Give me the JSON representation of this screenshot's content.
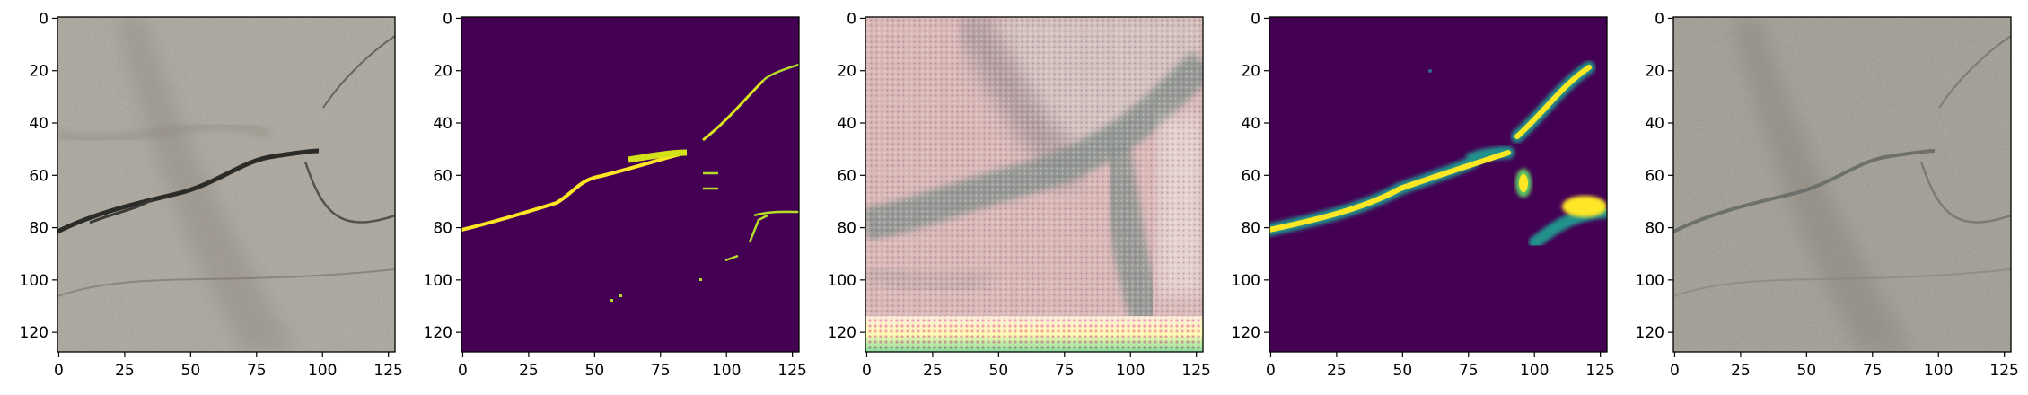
{
  "figure": {
    "panel_count": 5,
    "panels": [
      {
        "id": "input-photo",
        "content": "grayscale-concrete-photo-with-crack"
      },
      {
        "id": "ground-truth-mask",
        "content": "viridis-binary-crack-mask"
      },
      {
        "id": "generated-texture",
        "content": "checkerboard-artifact-colored-texture"
      },
      {
        "id": "predicted-mask",
        "content": "viridis-smooth-crack-prediction"
      },
      {
        "id": "reconstructed-photo",
        "content": "faded-concrete-photo-with-crack"
      }
    ],
    "axes": {
      "x_ticks": [
        "0",
        "25",
        "50",
        "75",
        "100",
        "125"
      ],
      "y_ticks": [
        "0",
        "20",
        "40",
        "60",
        "80",
        "100",
        "120"
      ],
      "xlim": [
        0,
        127
      ],
      "ylim": [
        0,
        127
      ]
    },
    "colors": {
      "viridis_dark": "#440154",
      "viridis_yellow": "#fde725",
      "viridis_green": "#5ec962",
      "viridis_teal": "#21918c",
      "concrete_base": "#a9a499",
      "concrete_dark": "#2b2b28",
      "texture_pink": "#d8b7b6",
      "texture_gray": "#8f9692"
    }
  }
}
